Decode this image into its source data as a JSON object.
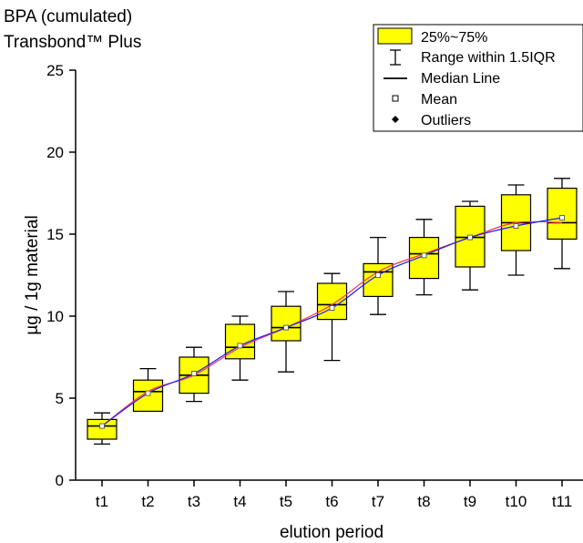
{
  "chart_data": {
    "type": "box",
    "title": "BPA (cumulated)",
    "subtitle": "Transbond™ Plus",
    "xlabel": "elution period",
    "ylabel": "µg / 1g material",
    "ylim": [
      0,
      25
    ],
    "yticks": [
      0,
      5,
      10,
      15,
      20,
      25
    ],
    "categories": [
      "t1",
      "t2",
      "t3",
      "t4",
      "t5",
      "t6",
      "t7",
      "t8",
      "t9",
      "t10",
      "t11"
    ],
    "boxes": [
      {
        "whisker_low": 2.2,
        "q1": 2.5,
        "median": 3.3,
        "q3": 3.7,
        "whisker_high": 4.1,
        "mean": 3.3
      },
      {
        "whisker_low": 4.2,
        "q1": 4.2,
        "median": 5.4,
        "q3": 6.1,
        "whisker_high": 6.8,
        "mean": 5.3
      },
      {
        "whisker_low": 4.8,
        "q1": 5.3,
        "median": 6.4,
        "q3": 7.5,
        "whisker_high": 8.1,
        "mean": 6.5
      },
      {
        "whisker_low": 6.1,
        "q1": 7.4,
        "median": 8.1,
        "q3": 9.5,
        "whisker_high": 10.0,
        "mean": 8.2
      },
      {
        "whisker_low": 6.6,
        "q1": 8.5,
        "median": 9.3,
        "q3": 10.6,
        "whisker_high": 11.5,
        "mean": 9.3
      },
      {
        "whisker_low": 7.3,
        "q1": 9.8,
        "median": 10.7,
        "q3": 12.0,
        "whisker_high": 12.6,
        "mean": 10.5
      },
      {
        "whisker_low": 10.1,
        "q1": 11.2,
        "median": 12.7,
        "q3": 13.2,
        "whisker_high": 14.8,
        "mean": 12.5
      },
      {
        "whisker_low": 11.3,
        "q1": 12.3,
        "median": 13.8,
        "q3": 14.8,
        "whisker_high": 15.9,
        "mean": 13.7
      },
      {
        "whisker_low": 11.6,
        "q1": 13.0,
        "median": 14.8,
        "q3": 16.7,
        "whisker_high": 17.0,
        "mean": 14.8
      },
      {
        "whisker_low": 12.5,
        "q1": 14.0,
        "median": 15.7,
        "q3": 17.4,
        "whisker_high": 18.0,
        "mean": 15.5
      },
      {
        "whisker_low": 12.9,
        "q1": 14.7,
        "median": 15.7,
        "q3": 17.8,
        "whisker_high": 18.4,
        "mean": 16.0
      }
    ],
    "legend": {
      "placement": "top-right",
      "entries": [
        "25%~75%",
        "Range within 1.5IQR",
        "Median Line",
        "Mean",
        "Outliers"
      ]
    },
    "colors": {
      "box_fill": "#ffff00",
      "box_stroke": "#000000",
      "mean_line": "#1a1aff",
      "trend_line": "#ff3355",
      "axis": "#000000"
    },
    "grid": false
  }
}
